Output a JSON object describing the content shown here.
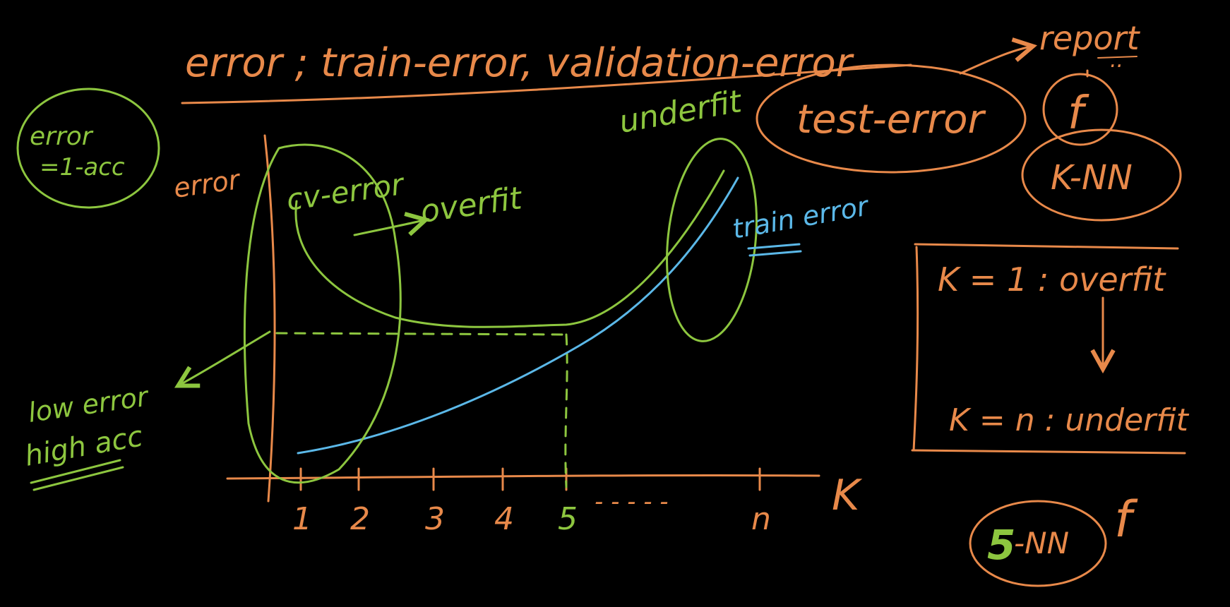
{
  "colors": {
    "background": "#000000",
    "orange": "#E8894A",
    "green": "#8DC63F",
    "blue": "#5BB8E8"
  },
  "header": {
    "title": "error ; train-error, validation-error",
    "report": "report",
    "report_dots": ".."
  },
  "notes": {
    "error_def_line1": "error",
    "error_def_line2": "=1-acc",
    "low_error_line1": "low error",
    "low_error_line2": "high acc",
    "test_error": "test-error",
    "f_letter": "f",
    "knn": "K-NN",
    "final_model_k": "5",
    "final_model_suffix": "-NN",
    "final_model_f": "f"
  },
  "plot": {
    "y_axis_label": "error",
    "x_axis_label": "K",
    "ticks": [
      "1",
      "2",
      "3",
      "4",
      "5",
      "n"
    ],
    "tick_dashes": "- - - - -",
    "cv_error_label": "cv-error",
    "overfit_label": "overfit",
    "underfit_label": "underfit",
    "train_error_label": "train error"
  },
  "summary_box": {
    "line1": "K = 1 : overfit",
    "line2": "K = n : underfit"
  }
}
